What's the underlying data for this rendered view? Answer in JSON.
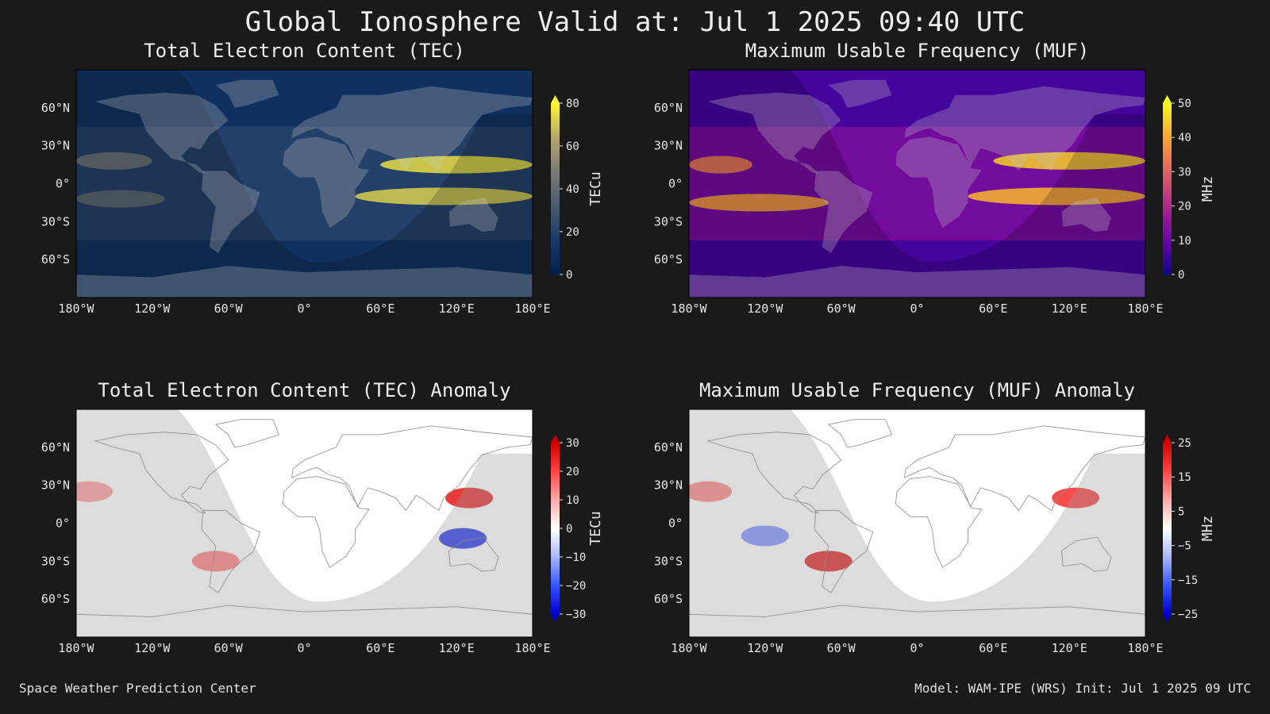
{
  "header": {
    "title": "Global Ionosphere Valid at: Jul 1 2025 09:40 UTC"
  },
  "footer": {
    "left": "Space Weather Prediction Center",
    "right": "Model: WAM-IPE (WRS) Init: Jul 1 2025 09 UTC"
  },
  "colors": {
    "background": "#1a1a1a",
    "tec_scale": [
      "#00204c",
      "#1a3a6b",
      "#4a5a6e",
      "#7a7c76",
      "#b5a86a",
      "#fef636"
    ],
    "muf_scale": [
      "#0d0887",
      "#5b02a3",
      "#9a179b",
      "#cb4678",
      "#eb7852",
      "#fbb32f",
      "#f0f921"
    ],
    "anomaly_scale": [
      "#0000cc",
      "#3355ff",
      "#aab8ff",
      "#ffffff",
      "#ffaaaa",
      "#ff4444",
      "#cc0000"
    ]
  },
  "chart_data": [
    {
      "type": "heatmap",
      "title": "Total Electron Content (TEC)",
      "map": "world-equirectangular",
      "colormap": "tec",
      "x_ticks": [
        "180°W",
        "120°W",
        "60°W",
        "0°",
        "60°E",
        "120°E",
        "180°E"
      ],
      "y_ticks": [
        "60°N",
        "30°N",
        "0°",
        "30°S",
        "60°S"
      ],
      "colorbar": {
        "label": "TECu",
        "ticks": [
          "0",
          "20",
          "40",
          "60",
          "80"
        ],
        "range": [
          0,
          80
        ],
        "extend": "max"
      },
      "features": [
        {
          "type": "band",
          "lat": 15,
          "lon_from": 60,
          "lon_to": 180,
          "value": 75
        },
        {
          "type": "band",
          "lat": -10,
          "lon_from": 40,
          "lon_to": 180,
          "value": 72
        },
        {
          "type": "band",
          "lat": 18,
          "lon_from": -180,
          "lon_to": -120,
          "value": 45
        },
        {
          "type": "band",
          "lat": -12,
          "lon_from": -180,
          "lon_to": -110,
          "value": 40
        }
      ]
    },
    {
      "type": "heatmap",
      "title": "Maximum Usable Frequency (MUF)",
      "map": "world-equirectangular",
      "colormap": "muf",
      "x_ticks": [
        "180°W",
        "120°W",
        "60°W",
        "0°",
        "60°E",
        "120°E",
        "180°E"
      ],
      "y_ticks": [
        "60°N",
        "30°N",
        "0°",
        "30°S",
        "60°S"
      ],
      "colorbar": {
        "label": "MHz",
        "ticks": [
          "0",
          "10",
          "20",
          "30",
          "40",
          "50"
        ],
        "range": [
          0,
          50
        ],
        "extend": "max"
      },
      "features": [
        {
          "type": "band",
          "lat": 18,
          "lon_from": 60,
          "lon_to": 180,
          "value": 45
        },
        {
          "type": "band",
          "lat": -10,
          "lon_from": 40,
          "lon_to": 180,
          "value": 42
        },
        {
          "type": "band",
          "lat": -15,
          "lon_from": -180,
          "lon_to": -70,
          "value": 40
        },
        {
          "type": "band",
          "lat": 15,
          "lon_from": -180,
          "lon_to": -130,
          "value": 35
        }
      ]
    },
    {
      "type": "heatmap",
      "title": "Total Electron Content (TEC) Anomaly",
      "map": "world-equirectangular",
      "colormap": "anomaly",
      "x_ticks": [
        "180°W",
        "120°W",
        "60°W",
        "0°",
        "60°E",
        "120°E",
        "180°E"
      ],
      "y_ticks": [
        "60°N",
        "30°N",
        "0°",
        "30°S",
        "60°S"
      ],
      "colorbar": {
        "label": "TECu",
        "ticks": [
          "30",
          "20",
          "10",
          "0",
          "−10",
          "−20",
          "−30"
        ],
        "range": [
          -30,
          30
        ],
        "extend": "both"
      },
      "features": [
        {
          "type": "blob",
          "lat": 20,
          "lon": 130,
          "value": 25
        },
        {
          "type": "blob",
          "lat": -12,
          "lon": 125,
          "value": -25
        },
        {
          "type": "blob",
          "lat": -30,
          "lon": -70,
          "value": 15
        },
        {
          "type": "blob",
          "lat": 25,
          "lon": -170,
          "value": 12
        }
      ]
    },
    {
      "type": "heatmap",
      "title": "Maximum Usable Frequency (MUF) Anomaly",
      "map": "world-equirectangular",
      "colormap": "anomaly",
      "x_ticks": [
        "180°W",
        "120°W",
        "60°W",
        "0°",
        "60°E",
        "120°E",
        "180°E"
      ],
      "y_ticks": [
        "60°N",
        "30°N",
        "0°",
        "30°S",
        "60°S"
      ],
      "colorbar": {
        "label": "MHz",
        "ticks": [
          "25",
          "15",
          "5",
          "−5",
          "−15",
          "−25"
        ],
        "range": [
          -25,
          25
        ],
        "extend": "both"
      },
      "features": [
        {
          "type": "blob",
          "lat": -30,
          "lon": -70,
          "value": 22
        },
        {
          "type": "blob",
          "lat": 20,
          "lon": 125,
          "value": 18
        },
        {
          "type": "blob",
          "lat": 25,
          "lon": -165,
          "value": 12
        },
        {
          "type": "blob",
          "lat": -10,
          "lon": -120,
          "value": -12
        }
      ]
    }
  ]
}
